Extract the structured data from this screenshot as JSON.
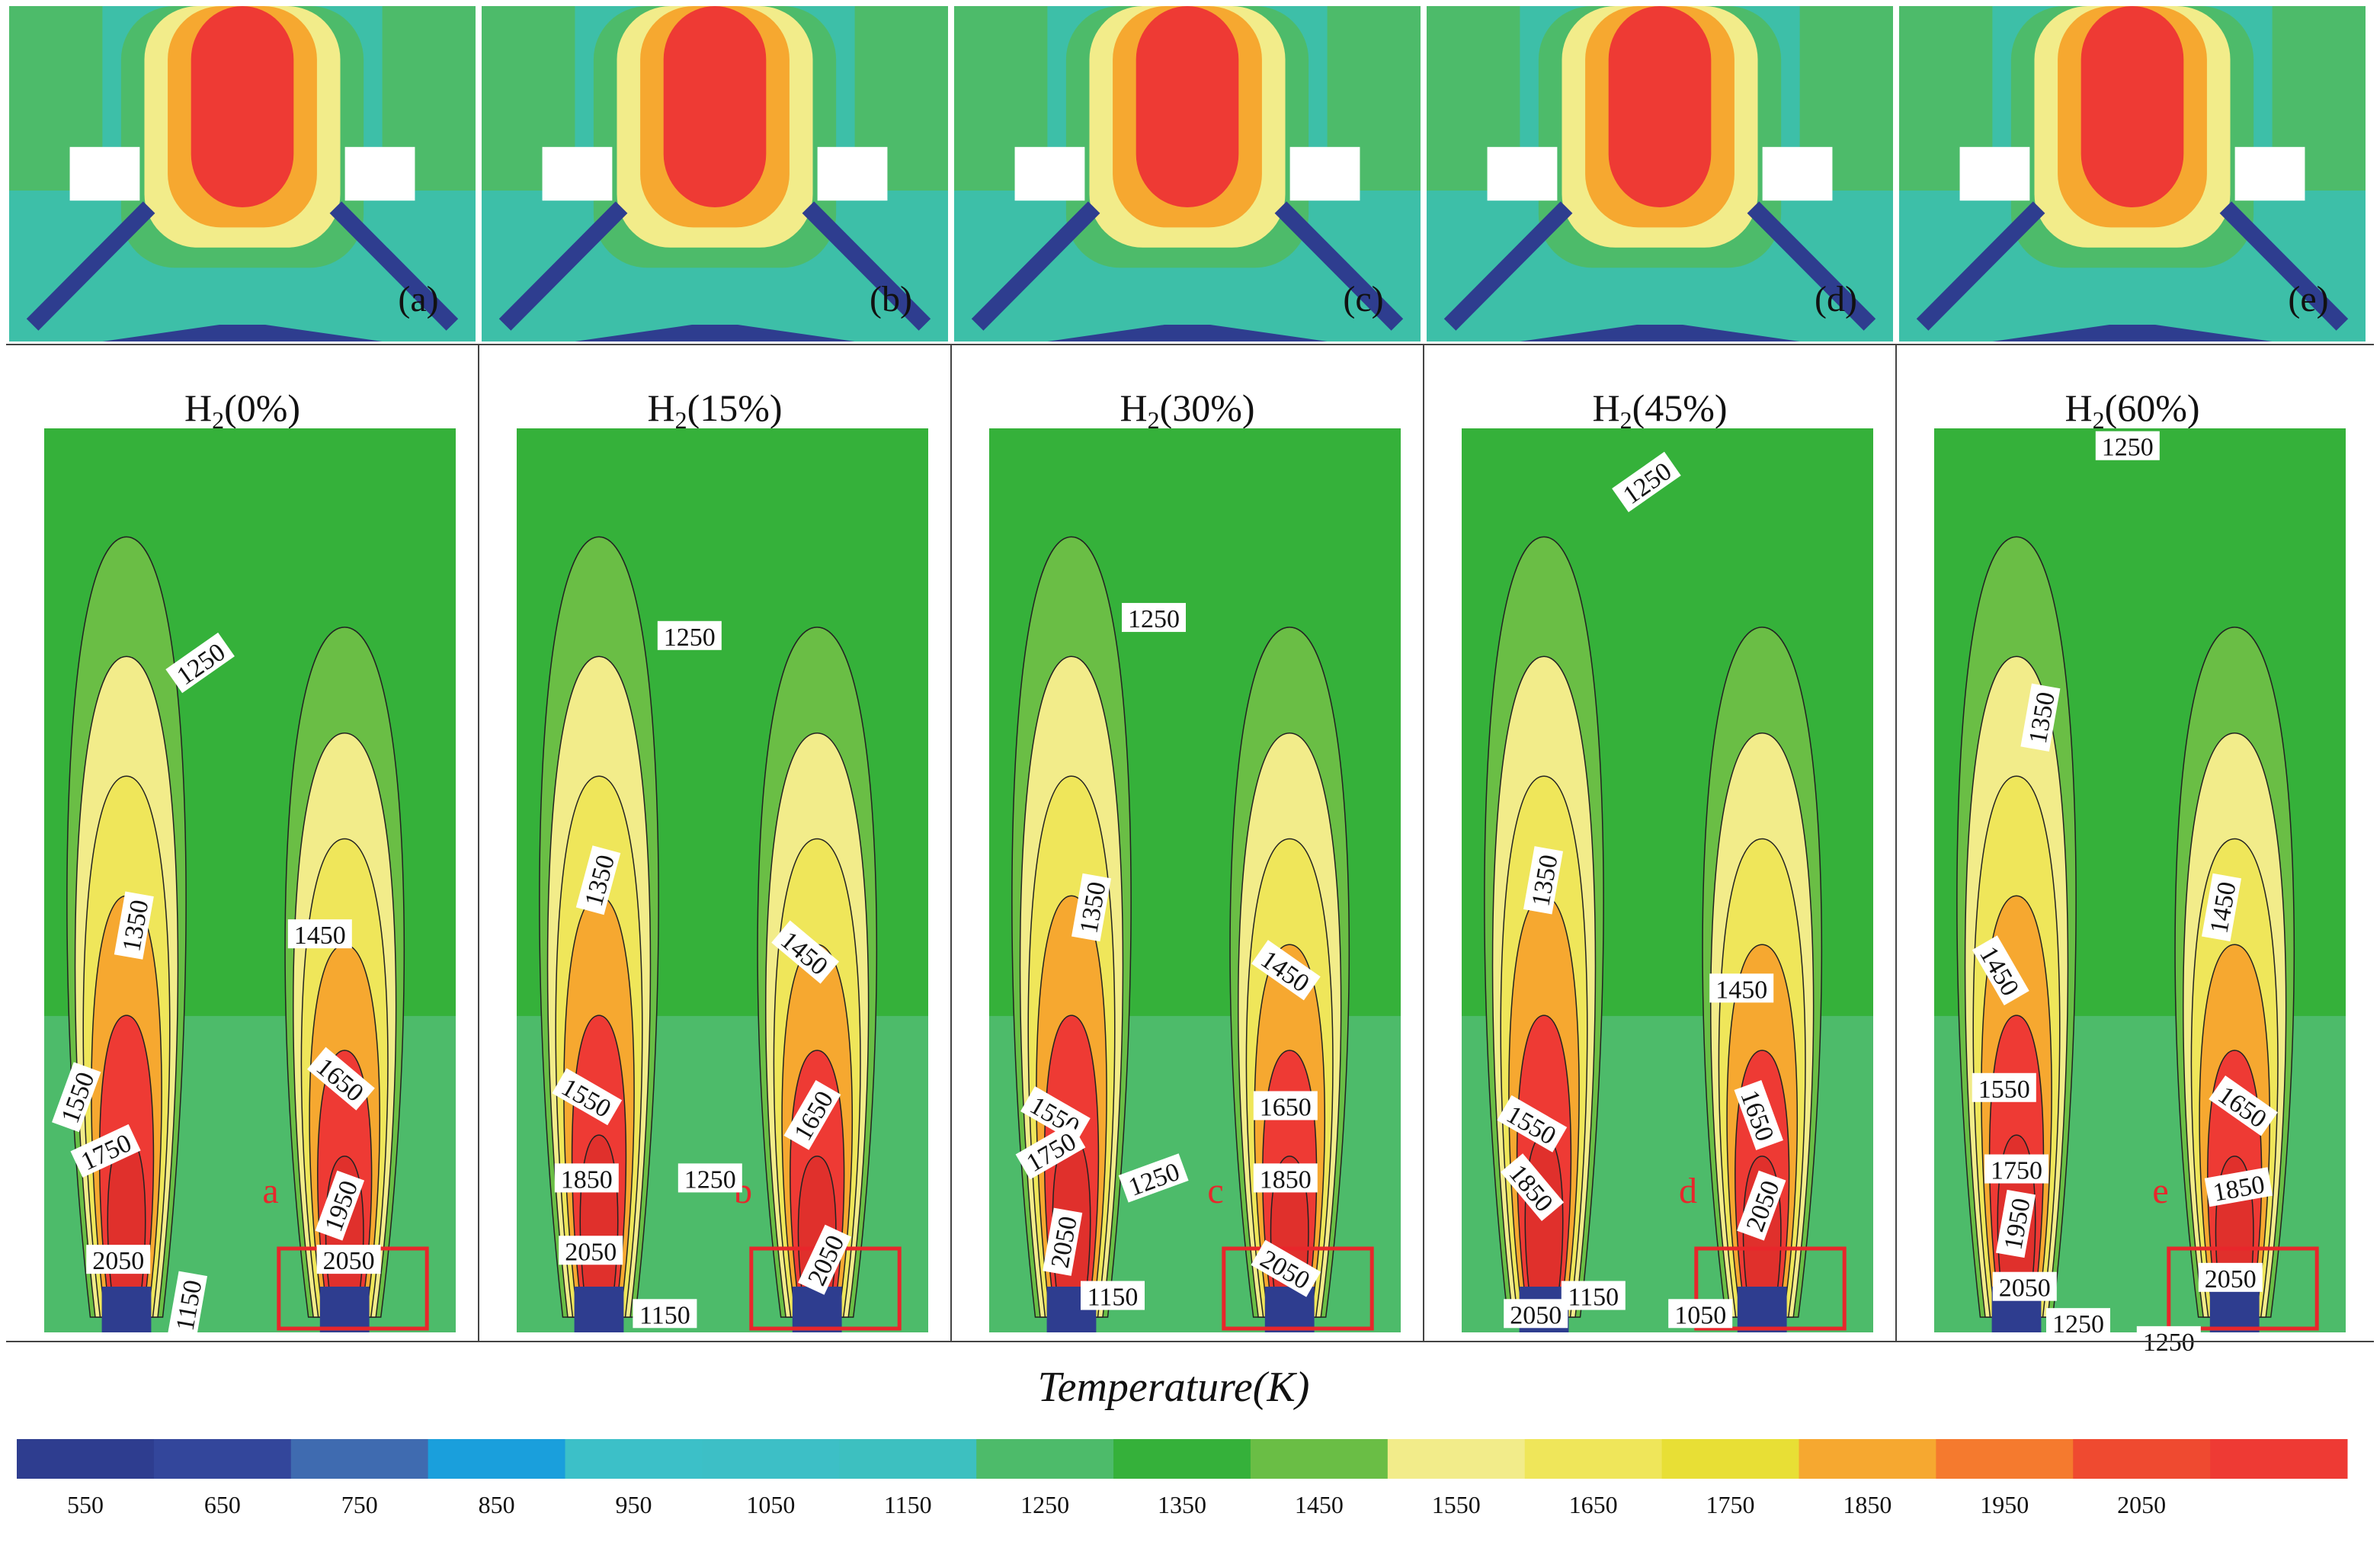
{
  "legend": {
    "title": "Temperature(K)",
    "tick_labels": [
      "550",
      "650",
      "750",
      "850",
      "950",
      "1050",
      "1150",
      "1250",
      "1350",
      "1450",
      "1550",
      "1650",
      "1750",
      "1850",
      "1950",
      "2050"
    ],
    "colors": [
      "#2e3d8f",
      "#33469b",
      "#3f6bb0",
      "#1a9fdc",
      "#3cc0c8",
      "#3dbfc6",
      "#3dc0c0",
      "#4dbb6a",
      "#35b13a",
      "#6abe45",
      "#f2ec8a",
      "#efe65a",
      "#e8df35",
      "#f6a830",
      "#f57a2e",
      "#ef4a30",
      "#ee3a34"
    ]
  },
  "panels": [
    {
      "id": "a",
      "letter_top": "(a)",
      "title_prefix": "H",
      "title_sub": "2",
      "title_suffix": "(0%)",
      "zone_letter": "a",
      "contour_labels": [
        "1250",
        "1350",
        "1450",
        "1550",
        "1650",
        "1750",
        "1950",
        "2050",
        "2050",
        "1150"
      ]
    },
    {
      "id": "b",
      "letter_top": "(b)",
      "title_prefix": "H",
      "title_sub": "2",
      "title_suffix": "(15%)",
      "zone_letter": "b",
      "contour_labels": [
        "1250",
        "1350",
        "1450",
        "1550",
        "1650",
        "1850",
        "1250",
        "2050",
        "2050",
        "1150"
      ]
    },
    {
      "id": "c",
      "letter_top": "(c)",
      "title_prefix": "H",
      "title_sub": "2",
      "title_suffix": "(30%)",
      "zone_letter": "c",
      "contour_labels": [
        "1250",
        "1350",
        "1450",
        "1550",
        "1650",
        "1750",
        "1250",
        "1850",
        "2050",
        "2050",
        "1150"
      ]
    },
    {
      "id": "d",
      "letter_top": "(d)",
      "title_prefix": "H",
      "title_sub": "2",
      "title_suffix": "(45%)",
      "zone_letter": "d",
      "contour_labels": [
        "1250",
        "1350",
        "1450",
        "1550",
        "1650",
        "1850",
        "2050",
        "1150",
        "2050",
        "1050"
      ]
    },
    {
      "id": "e",
      "letter_top": "(e)",
      "title_prefix": "H",
      "title_sub": "2",
      "title_suffix": "(60%)",
      "zone_letter": "e",
      "contour_labels": [
        "1250",
        "1350",
        "1450",
        "1450",
        "1550",
        "1650",
        "1750",
        "1850",
        "1950",
        "2050",
        "2050",
        "1250",
        "1250"
      ]
    }
  ]
}
